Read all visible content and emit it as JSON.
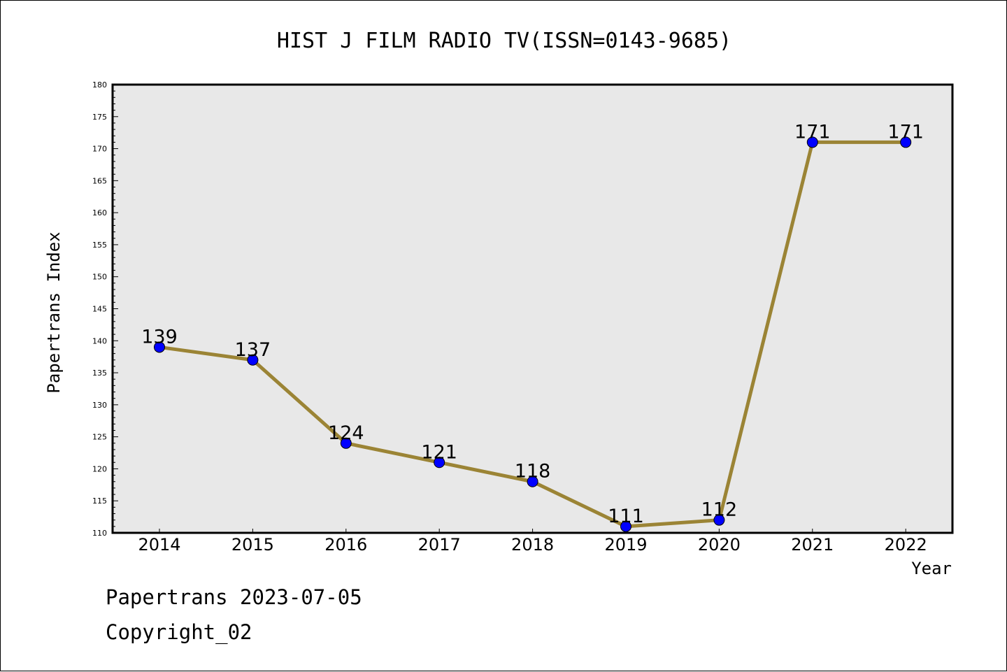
{
  "chart_data": {
    "type": "line",
    "title": "HIST J FILM RADIO TV(ISSN=0143-9685)",
    "xlabel": "Year",
    "ylabel": "Papertrans Index",
    "categories": [
      "2014",
      "2015",
      "2016",
      "2017",
      "2018",
      "2019",
      "2020",
      "2021",
      "2022"
    ],
    "values": [
      139,
      137,
      124,
      121,
      118,
      111,
      112,
      171,
      171
    ],
    "data_labels": [
      "139",
      "137",
      "124",
      "121",
      "118",
      "111",
      "112",
      "171",
      "171"
    ],
    "ylim": [
      110,
      180
    ],
    "y_ticks": [
      "110",
      "115",
      "120",
      "125",
      "130",
      "135",
      "140",
      "145",
      "150",
      "155",
      "160",
      "165",
      "170",
      "175",
      "180"
    ],
    "grid": false,
    "legend": "none",
    "colors": {
      "line": "#9b8435",
      "marker": "#0000ff",
      "plot_background": "#e8e8e8"
    }
  },
  "footer": {
    "line1": "Papertrans 2023-07-05",
    "line2": "Copyright_02"
  }
}
